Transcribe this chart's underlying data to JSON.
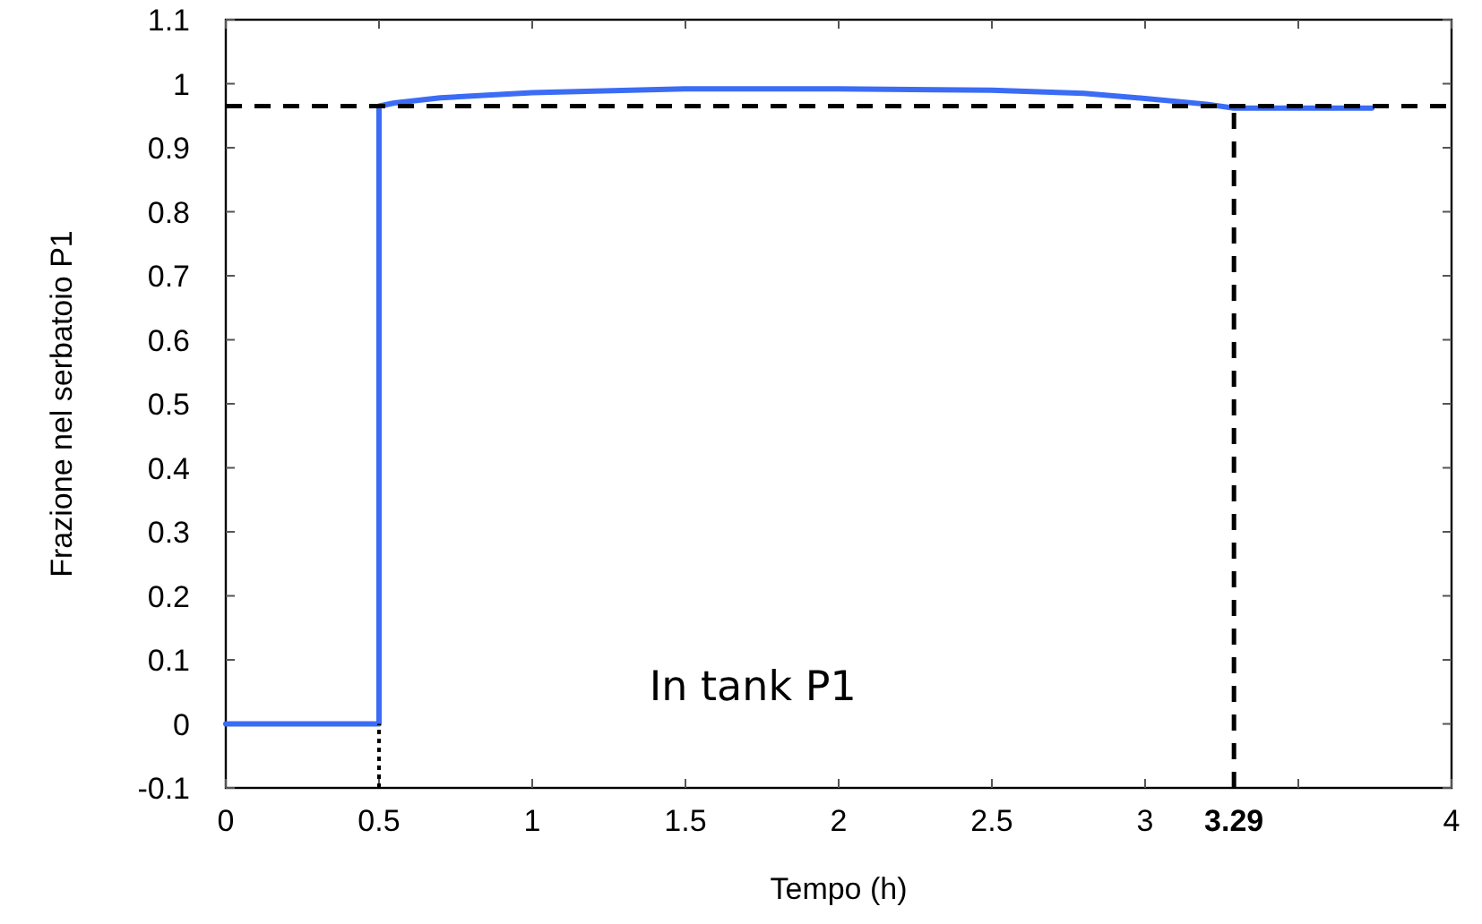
{
  "chart_data": {
    "type": "line",
    "xlabel": "Tempo (h)",
    "ylabel": "Frazione nel serbatoio P1",
    "x": [
      0,
      0.25,
      0.5,
      0.5,
      0.55,
      0.7,
      1,
      1.5,
      2,
      2.5,
      2.8,
      3,
      3.2,
      3.29,
      3.5,
      3.74
    ],
    "series": [
      {
        "color": "#3b6cf5",
        "values": [
          0,
          0,
          0,
          0.965,
          0.97,
          0.978,
          0.986,
          0.992,
          0.992,
          0.99,
          0.985,
          0.977,
          0.968,
          0.962,
          0.962,
          0.962
        ]
      }
    ],
    "xlim": [
      0,
      4
    ],
    "xticks": [
      0,
      0.5,
      1,
      1.5,
      2,
      2.5,
      3,
      {
        "value": 3.5,
        "label": null
      },
      4
    ],
    "ylim": [
      -0.1,
      1.1
    ],
    "yticks": [
      -0.1,
      0,
      0.1,
      0.2,
      0.3,
      0.4,
      0.5,
      0.6,
      0.7,
      0.8,
      0.9,
      1,
      1.1
    ],
    "ref_lines": [
      {
        "axis": "y",
        "value": 0.965,
        "line_style": "dashed",
        "color": "#000000"
      },
      {
        "axis": "x",
        "value": 3.29,
        "label": "3.29",
        "line_style": "dashed",
        "color": "#000000"
      },
      {
        "axis": "x",
        "value": 0.5,
        "line_style": "dotted",
        "color": "#000000"
      }
    ],
    "annotations": [
      "In tank P1"
    ],
    "grid": false,
    "line_style": "solid"
  }
}
